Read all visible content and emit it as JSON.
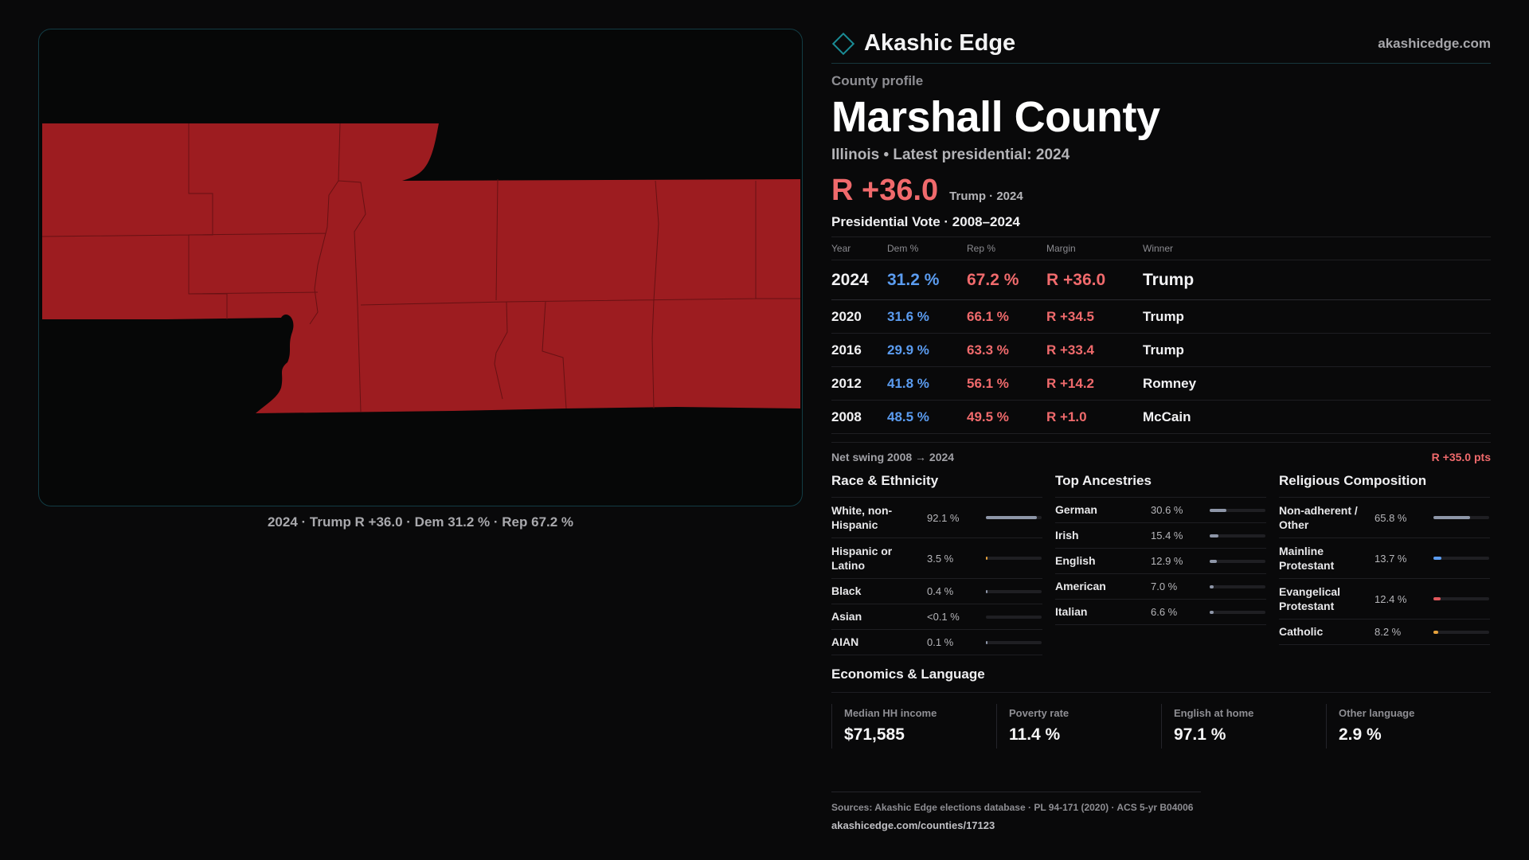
{
  "brand": {
    "name": "Akashic Edge",
    "url": "akashicedge.com",
    "accent": "#1a8c96"
  },
  "profile": {
    "eyebrow": "County profile",
    "title": "Marshall County",
    "subtitle": "Illinois • Latest presidential: 2024",
    "headline_margin": "R +36.0",
    "headline_note": "Trump · 2024"
  },
  "map": {
    "caption": "2024 · Trump R +36.0 · Dem 31.2 % · Rep 67.2 %",
    "fill_color": "#9d1c20"
  },
  "votes": {
    "section_title": "Presidential Vote · 2008–2024",
    "headers": {
      "year": "Year",
      "dem": "Dem %",
      "rep": "Rep %",
      "margin": "Margin",
      "winner": "Winner"
    },
    "rows": [
      {
        "year": "2024",
        "dem": "31.2 %",
        "rep": "67.2 %",
        "margin": "R +36.0",
        "winner": "Trump"
      },
      {
        "year": "2020",
        "dem": "31.6 %",
        "rep": "66.1 %",
        "margin": "R +34.5",
        "winner": "Trump"
      },
      {
        "year": "2016",
        "dem": "29.9 %",
        "rep": "63.3 %",
        "margin": "R +33.4",
        "winner": "Trump"
      },
      {
        "year": "2012",
        "dem": "41.8 %",
        "rep": "56.1 %",
        "margin": "R +14.2",
        "winner": "Romney"
      },
      {
        "year": "2008",
        "dem": "48.5 %",
        "rep": "49.5 %",
        "margin": "R +1.0",
        "winner": "McCain"
      }
    ],
    "swing_label": "Net swing 2008 → 2024",
    "swing_value": "R +35.0 pts"
  },
  "race": {
    "title": "Race & Ethnicity",
    "items": [
      {
        "name": "White, non-Hispanic",
        "value": "92.1 %",
        "fraction": 0.921,
        "color": "#8e96a8"
      },
      {
        "name": "Hispanic or Latino",
        "value": "3.5 %",
        "fraction": 0.035,
        "color": "#e6a23c"
      },
      {
        "name": "Black",
        "value": "0.4 %",
        "fraction": 0.004,
        "color": "#8e96a8"
      },
      {
        "name": "Asian",
        "value": "<0.1 %",
        "fraction": 0.0,
        "color": "#8e96a8"
      },
      {
        "name": "AIAN",
        "value": "0.1 %",
        "fraction": 0.001,
        "color": "#8e96a8"
      }
    ]
  },
  "ancestry": {
    "title": "Top Ancestries",
    "items": [
      {
        "name": "German",
        "value": "30.6 %",
        "fraction": 0.306,
        "color": "#8e96a8"
      },
      {
        "name": "Irish",
        "value": "15.4 %",
        "fraction": 0.154,
        "color": "#8e96a8"
      },
      {
        "name": "English",
        "value": "12.9 %",
        "fraction": 0.129,
        "color": "#8e96a8"
      },
      {
        "name": "American",
        "value": "7.0 %",
        "fraction": 0.07,
        "color": "#8e96a8"
      },
      {
        "name": "Italian",
        "value": "6.6 %",
        "fraction": 0.066,
        "color": "#8e96a8"
      }
    ]
  },
  "religion": {
    "title": "Religious Composition",
    "items": [
      {
        "name": "Non-adherent / Other",
        "value": "65.8 %",
        "fraction": 0.658,
        "color": "#8e96a8"
      },
      {
        "name": "Mainline Protestant",
        "value": "13.7 %",
        "fraction": 0.137,
        "color": "#5b9cf0"
      },
      {
        "name": "Evangelical Protestant",
        "value": "12.4 %",
        "fraction": 0.124,
        "color": "#e0575b"
      },
      {
        "name": "Catholic",
        "value": "8.2 %",
        "fraction": 0.082,
        "color": "#e6a23c"
      }
    ]
  },
  "economics": {
    "title": "Economics & Language",
    "items": [
      {
        "label": "Median HH income",
        "value": "$71,585"
      },
      {
        "label": "Poverty rate",
        "value": "11.4 %"
      },
      {
        "label": "English at home",
        "value": "97.1 %"
      },
      {
        "label": "Other language",
        "value": "2.9 %"
      }
    ]
  },
  "sources": {
    "text": "Sources: Akashic Edge elections database · PL 94-171 (2020) · ACS 5-yr B04006",
    "url": "akashicedge.com/counties/17123"
  }
}
